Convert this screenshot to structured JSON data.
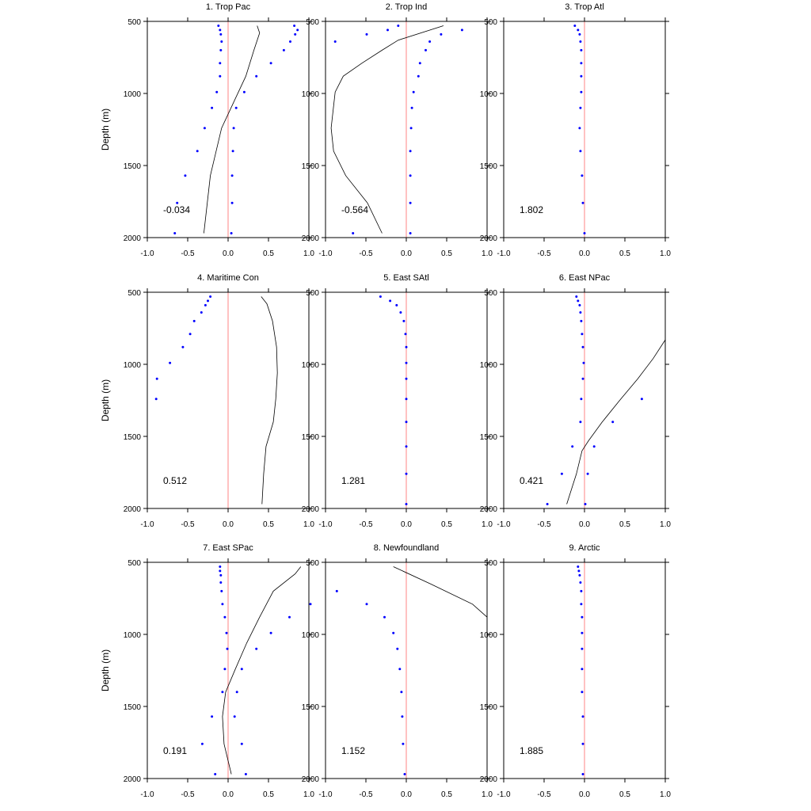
{
  "chart_data": {
    "type": "scatter",
    "ylabel": "Depth (m)",
    "xlim": [
      -1.0,
      1.0
    ],
    "ylim": [
      500,
      2000
    ],
    "y_inverted": true,
    "xticks": [
      "-1.0",
      "-0.5",
      "0.0",
      "0.5",
      "1.0"
    ],
    "yticks": [
      "500",
      "1000",
      "1500",
      "2000"
    ],
    "colors": {
      "dots": "#0000ff",
      "zero_line": "#ff9999",
      "curve": "#000000"
    },
    "panels": [
      {
        "title": "1. Trop Pac",
        "value": "-0.034",
        "dots": [
          [
            -0.12,
            530
          ],
          [
            -0.1,
            560
          ],
          [
            -0.09,
            590
          ],
          [
            -0.08,
            640
          ],
          [
            -0.09,
            700
          ],
          [
            -0.1,
            790
          ],
          [
            -0.1,
            880
          ],
          [
            -0.14,
            990
          ],
          [
            -0.2,
            1100
          ],
          [
            -0.29,
            1240
          ],
          [
            -0.38,
            1400
          ],
          [
            -0.53,
            1570
          ],
          [
            -0.63,
            1760
          ],
          [
            -0.66,
            1970
          ],
          [
            0.82,
            530
          ],
          [
            0.86,
            560
          ],
          [
            0.83,
            590
          ],
          [
            0.77,
            640
          ],
          [
            0.69,
            700
          ],
          [
            0.53,
            790
          ],
          [
            0.35,
            880
          ],
          [
            0.2,
            990
          ],
          [
            0.1,
            1100
          ],
          [
            0.07,
            1240
          ],
          [
            0.06,
            1400
          ],
          [
            0.05,
            1570
          ],
          [
            0.05,
            1760
          ],
          [
            0.04,
            1970
          ]
        ],
        "curve": [
          [
            0.36,
            530
          ],
          [
            0.39,
            580
          ],
          [
            0.32,
            700
          ],
          [
            0.22,
            880
          ],
          [
            0.07,
            1060
          ],
          [
            -0.08,
            1240
          ],
          [
            -0.22,
            1570
          ],
          [
            -0.3,
            1970
          ]
        ]
      },
      {
        "title": "2. Trop Ind",
        "value": "-0.564",
        "dots": [
          [
            -0.1,
            530
          ],
          [
            -0.23,
            560
          ],
          [
            -0.49,
            590
          ],
          [
            -0.88,
            640
          ],
          [
            0.69,
            560
          ],
          [
            0.43,
            590
          ],
          [
            0.29,
            640
          ],
          [
            0.24,
            700
          ],
          [
            0.17,
            790
          ],
          [
            0.15,
            880
          ],
          [
            0.09,
            990
          ],
          [
            0.07,
            1100
          ],
          [
            0.06,
            1240
          ],
          [
            0.05,
            1400
          ],
          [
            0.05,
            1570
          ],
          [
            0.05,
            1760
          ],
          [
            0.05,
            1970
          ],
          [
            -0.66,
            1970
          ]
        ],
        "curve": [
          [
            0.46,
            530
          ],
          [
            -0.1,
            630
          ],
          [
            -0.3,
            700
          ],
          [
            -0.55,
            790
          ],
          [
            -0.78,
            880
          ],
          [
            -0.88,
            990
          ],
          [
            -0.93,
            1240
          ],
          [
            -0.9,
            1400
          ],
          [
            -0.75,
            1570
          ],
          [
            -0.48,
            1760
          ],
          [
            -0.3,
            1970
          ]
        ]
      },
      {
        "title": "3. Trop Atl",
        "value": "1.802",
        "dots": [
          [
            -0.12,
            530
          ],
          [
            -0.08,
            560
          ],
          [
            -0.06,
            590
          ],
          [
            -0.05,
            640
          ],
          [
            -0.04,
            700
          ],
          [
            -0.04,
            790
          ],
          [
            -0.04,
            880
          ],
          [
            -0.04,
            990
          ],
          [
            -0.05,
            1100
          ],
          [
            -0.06,
            1240
          ],
          [
            -0.05,
            1400
          ],
          [
            -0.03,
            1570
          ],
          [
            -0.02,
            1760
          ],
          [
            0.0,
            1970
          ]
        ],
        "curve": []
      },
      {
        "title": "4. Maritime Con",
        "value": "0.512",
        "dots": [
          [
            -0.22,
            530
          ],
          [
            -0.25,
            560
          ],
          [
            -0.28,
            590
          ],
          [
            -0.33,
            640
          ],
          [
            -0.42,
            700
          ],
          [
            -0.47,
            790
          ],
          [
            -0.56,
            880
          ],
          [
            -0.72,
            990
          ],
          [
            -0.88,
            1100
          ],
          [
            -0.89,
            1240
          ]
        ],
        "curve": [
          [
            0.41,
            530
          ],
          [
            0.48,
            580
          ],
          [
            0.55,
            700
          ],
          [
            0.6,
            880
          ],
          [
            0.61,
            1060
          ],
          [
            0.59,
            1240
          ],
          [
            0.56,
            1400
          ],
          [
            0.47,
            1570
          ],
          [
            0.44,
            1760
          ],
          [
            0.42,
            1970
          ]
        ]
      },
      {
        "title": "5. East SAtl",
        "value": "1.281",
        "dots": [
          [
            -0.32,
            530
          ],
          [
            -0.2,
            560
          ],
          [
            -0.12,
            590
          ],
          [
            -0.07,
            640
          ],
          [
            -0.03,
            700
          ],
          [
            -0.01,
            790
          ],
          [
            0.0,
            880
          ],
          [
            0.0,
            990
          ],
          [
            0.0,
            1100
          ],
          [
            0.0,
            1240
          ],
          [
            0.0,
            1400
          ],
          [
            0.0,
            1570
          ],
          [
            0.0,
            1760
          ],
          [
            0.0,
            1970
          ]
        ],
        "curve": []
      },
      {
        "title": "6. East NPac",
        "value": "0.421",
        "dots": [
          [
            -0.1,
            530
          ],
          [
            -0.08,
            560
          ],
          [
            -0.06,
            590
          ],
          [
            -0.05,
            640
          ],
          [
            -0.04,
            700
          ],
          [
            -0.03,
            790
          ],
          [
            -0.02,
            880
          ],
          [
            -0.01,
            990
          ],
          [
            -0.02,
            1100
          ],
          [
            -0.04,
            1240
          ],
          [
            -0.05,
            1400
          ],
          [
            -0.15,
            1570
          ],
          [
            -0.28,
            1760
          ],
          [
            -0.46,
            1970
          ],
          [
            0.71,
            1240
          ],
          [
            0.35,
            1400
          ],
          [
            0.12,
            1570
          ],
          [
            0.04,
            1760
          ],
          [
            0.01,
            1970
          ]
        ],
        "curve": [
          [
            1.02,
            830
          ],
          [
            0.85,
            960
          ],
          [
            0.66,
            1100
          ],
          [
            0.45,
            1240
          ],
          [
            0.22,
            1400
          ],
          [
            0.05,
            1530
          ],
          [
            -0.03,
            1600
          ],
          [
            -0.1,
            1760
          ],
          [
            -0.22,
            1970
          ]
        ]
      },
      {
        "title": "7. East SPac",
        "value": "0.191",
        "dots": [
          [
            -0.1,
            530
          ],
          [
            -0.1,
            560
          ],
          [
            -0.09,
            590
          ],
          [
            -0.09,
            640
          ],
          [
            -0.08,
            700
          ],
          [
            -0.07,
            790
          ],
          [
            -0.04,
            880
          ],
          [
            -0.02,
            990
          ],
          [
            -0.01,
            1100
          ],
          [
            -0.04,
            1240
          ],
          [
            -0.07,
            1400
          ],
          [
            -0.2,
            1570
          ],
          [
            -0.32,
            1760
          ],
          [
            -0.16,
            1970
          ],
          [
            1.02,
            790
          ],
          [
            0.76,
            880
          ],
          [
            0.53,
            990
          ],
          [
            0.35,
            1100
          ],
          [
            0.17,
            1240
          ],
          [
            0.11,
            1400
          ],
          [
            0.08,
            1570
          ],
          [
            0.17,
            1760
          ],
          [
            0.22,
            1970
          ]
        ],
        "curve": [
          [
            0.9,
            530
          ],
          [
            0.83,
            580
          ],
          [
            0.56,
            700
          ],
          [
            0.39,
            880
          ],
          [
            0.23,
            1060
          ],
          [
            0.09,
            1240
          ],
          [
            -0.03,
            1400
          ],
          [
            -0.07,
            1570
          ],
          [
            -0.05,
            1760
          ],
          [
            0.04,
            1970
          ]
        ]
      },
      {
        "title": "8. Newfoundland",
        "value": "1.152",
        "dots": [
          [
            -0.86,
            700
          ],
          [
            -0.49,
            790
          ],
          [
            -0.27,
            880
          ],
          [
            -0.16,
            990
          ],
          [
            -0.11,
            1100
          ],
          [
            -0.08,
            1240
          ],
          [
            -0.06,
            1400
          ],
          [
            -0.05,
            1570
          ],
          [
            -0.04,
            1760
          ],
          [
            -0.02,
            1970
          ]
        ],
        "curve": [
          [
            -0.16,
            530
          ],
          [
            0.3,
            650
          ],
          [
            0.82,
            790
          ],
          [
            1.02,
            880
          ]
        ]
      },
      {
        "title": "9. Arctic",
        "value": "1.885",
        "dots": [
          [
            -0.08,
            530
          ],
          [
            -0.07,
            560
          ],
          [
            -0.06,
            590
          ],
          [
            -0.05,
            640
          ],
          [
            -0.04,
            700
          ],
          [
            -0.04,
            790
          ],
          [
            -0.03,
            880
          ],
          [
            -0.03,
            990
          ],
          [
            -0.03,
            1100
          ],
          [
            -0.03,
            1240
          ],
          [
            -0.03,
            1400
          ],
          [
            -0.02,
            1570
          ],
          [
            -0.02,
            1760
          ],
          [
            -0.02,
            1970
          ]
        ],
        "curve": []
      }
    ]
  }
}
